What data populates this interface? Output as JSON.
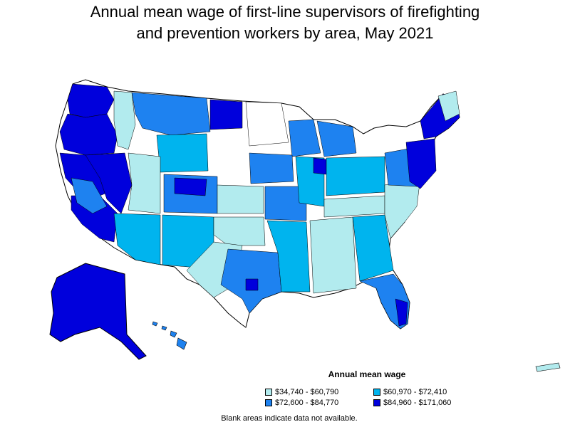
{
  "title": {
    "line1": "Annual mean wage of first-line supervisors of firefighting",
    "line2": "and prevention workers by area, May 2021"
  },
  "legend": {
    "title": "Annual mean wage",
    "items": [
      {
        "label": "$34,740 - $60,790",
        "color": "#b2ebee"
      },
      {
        "label": "$60,970 - $72,410",
        "color": "#00b4ee"
      },
      {
        "label": "$72,600 - $84,770",
        "color": "#1e82f0"
      },
      {
        "label": "$84,960 - $171,060",
        "color": "#0000dc"
      }
    ]
  },
  "note": "Blank areas indicate data not available.",
  "colors": {
    "blank": "#ffffff",
    "border": "#000000"
  }
}
